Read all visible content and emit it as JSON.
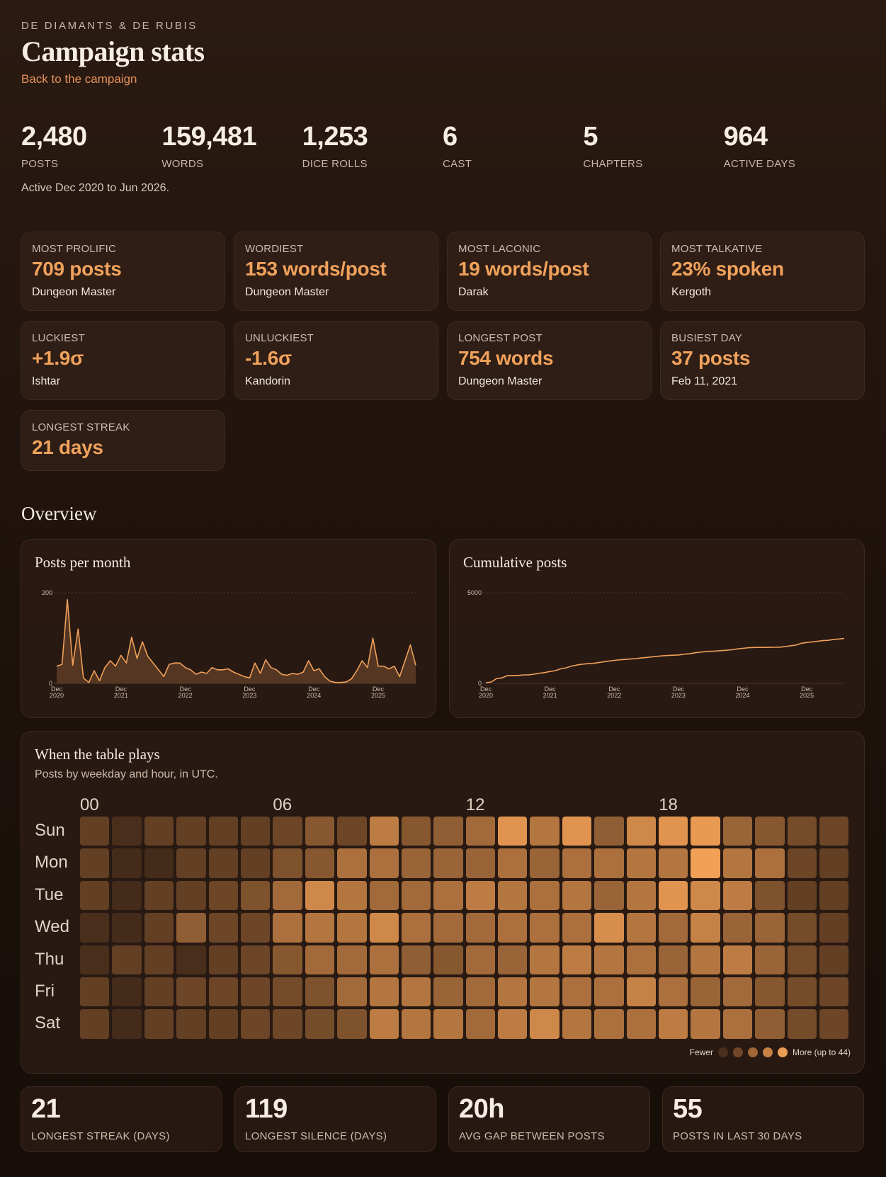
{
  "header": {
    "kicker": "DE DIAMANTS & DE RUBIS",
    "title": "Campaign stats",
    "back_link": "Back to the campaign"
  },
  "totals": [
    {
      "value": "2,480",
      "label": "POSTS"
    },
    {
      "value": "159,481",
      "label": "WORDS"
    },
    {
      "value": "1,253",
      "label": "DICE ROLLS"
    },
    {
      "value": "6",
      "label": "CAST"
    },
    {
      "value": "5",
      "label": "CHAPTERS"
    },
    {
      "value": "964",
      "label": "ACTIVE DAYS"
    }
  ],
  "active_range": "Active Dec 2020 to Jun 2026.",
  "cards": [
    {
      "label": "MOST PROLIFIC",
      "value": "709 posts",
      "who": "Dungeon Master"
    },
    {
      "label": "WORDIEST",
      "value": "153 words/post",
      "who": "Dungeon Master"
    },
    {
      "label": "MOST LACONIC",
      "value": "19 words/post",
      "who": "Darak"
    },
    {
      "label": "MOST TALKATIVE",
      "value": "23% spoken",
      "who": "Kergoth"
    },
    {
      "label": "LUCKIEST",
      "value": "+1.9σ",
      "who": "Ishtar"
    },
    {
      "label": "UNLUCKIEST",
      "value": "-1.6σ",
      "who": "Kandorin"
    },
    {
      "label": "LONGEST POST",
      "value": "754 words",
      "who": "Dungeon Master"
    },
    {
      "label": "BUSIEST DAY",
      "value": "37 posts",
      "who": "Feb 11, 2021"
    },
    {
      "label": "LONGEST STREAK",
      "value": "21 days",
      "who": ""
    }
  ],
  "overview_title": "Overview",
  "chart_data": [
    {
      "type": "area",
      "title": "Posts per month",
      "ylim": [
        0,
        200
      ],
      "yticks": [
        "200",
        "0"
      ],
      "xticks": [
        [
          "Dec",
          "2020"
        ],
        [
          "Dec",
          "2021"
        ],
        [
          "Dec",
          "2022"
        ],
        [
          "Dec",
          "2023"
        ],
        [
          "Dec",
          "2024"
        ],
        [
          "Dec",
          "2025"
        ]
      ],
      "x_start": "Dec 2020",
      "values": [
        38,
        42,
        185,
        40,
        120,
        12,
        2,
        28,
        6,
        35,
        50,
        38,
        62,
        45,
        102,
        55,
        92,
        60,
        45,
        30,
        15,
        42,
        45,
        45,
        35,
        30,
        20,
        25,
        22,
        35,
        30,
        30,
        32,
        25,
        20,
        15,
        12,
        45,
        22,
        52,
        35,
        30,
        20,
        18,
        22,
        20,
        25,
        50,
        28,
        32,
        15,
        5,
        2,
        2,
        3,
        10,
        28,
        50,
        35,
        100,
        38,
        38,
        32,
        38,
        15,
        50,
        85,
        40
      ]
    },
    {
      "type": "line",
      "title": "Cumulative posts",
      "ylim": [
        0,
        5000
      ],
      "yticks": [
        "5000",
        "0"
      ],
      "xticks": [
        [
          "Dec",
          "2020"
        ],
        [
          "Dec",
          "2021"
        ],
        [
          "Dec",
          "2022"
        ],
        [
          "Dec",
          "2023"
        ],
        [
          "Dec",
          "2024"
        ],
        [
          "Dec",
          "2025"
        ]
      ],
      "x_start": "Dec 2020",
      "values": [
        40,
        80,
        265,
        305,
        425,
        437,
        439,
        467,
        473,
        508,
        558,
        596,
        658,
        703,
        805,
        860,
        952,
        1012,
        1057,
        1087,
        1102,
        1144,
        1189,
        1234,
        1269,
        1299,
        1319,
        1344,
        1366,
        1401,
        1431,
        1461,
        1493,
        1518,
        1538,
        1553,
        1565,
        1610,
        1632,
        1684,
        1719,
        1749,
        1769,
        1787,
        1809,
        1829,
        1854,
        1904,
        1932,
        1964,
        1979,
        1984,
        1986,
        1988,
        1991,
        2001,
        2029,
        2079,
        2114,
        2214,
        2252,
        2290,
        2322,
        2360,
        2375,
        2425,
        2450,
        2480
      ]
    }
  ],
  "heatmap": {
    "title": "When the table plays",
    "subtitle": "Posts by weekday and hour, in UTC.",
    "hour_labels": [
      "00",
      "06",
      "12",
      "18"
    ],
    "days": [
      "Sun",
      "Mon",
      "Tue",
      "Wed",
      "Thu",
      "Fri",
      "Sat"
    ],
    "max": 44,
    "values": [
      [
        12,
        6,
        12,
        12,
        12,
        12,
        14,
        20,
        14,
        32,
        20,
        22,
        26,
        40,
        30,
        40,
        22,
        36,
        40,
        42,
        24,
        20,
        16,
        14
      ],
      [
        12,
        5,
        5,
        12,
        12,
        12,
        18,
        20,
        28,
        28,
        24,
        24,
        24,
        28,
        24,
        28,
        28,
        30,
        30,
        44,
        30,
        28,
        14,
        12
      ],
      [
        12,
        5,
        12,
        12,
        14,
        18,
        26,
        36,
        30,
        26,
        26,
        28,
        32,
        30,
        28,
        30,
        24,
        30,
        40,
        36,
        32,
        18,
        12,
        12
      ],
      [
        6,
        5,
        12,
        22,
        14,
        14,
        28,
        30,
        30,
        36,
        28,
        26,
        26,
        28,
        28,
        28,
        38,
        30,
        26,
        34,
        24,
        24,
        16,
        12
      ],
      [
        6,
        12,
        12,
        6,
        12,
        14,
        20,
        26,
        26,
        28,
        22,
        20,
        26,
        24,
        30,
        32,
        30,
        28,
        24,
        30,
        32,
        24,
        16,
        12
      ],
      [
        12,
        5,
        12,
        14,
        14,
        14,
        16,
        18,
        26,
        30,
        30,
        24,
        26,
        30,
        30,
        28,
        28,
        34,
        28,
        24,
        26,
        20,
        16,
        14
      ],
      [
        12,
        5,
        12,
        12,
        12,
        14,
        14,
        16,
        18,
        32,
        30,
        30,
        26,
        32,
        36,
        30,
        28,
        28,
        32,
        30,
        28,
        22,
        16,
        14
      ]
    ],
    "legend_fewer": "Fewer",
    "legend_more": "More (up to 44)",
    "legend_colors": [
      "#4a2f1f",
      "#734628",
      "#a16635",
      "#c98145",
      "#eb9e54"
    ]
  },
  "bottom_stats": [
    {
      "value": "21",
      "label": "LONGEST STREAK (DAYS)"
    },
    {
      "value": "119",
      "label": "LONGEST SILENCE (DAYS)"
    },
    {
      "value": "20h",
      "label": "AVG GAP BETWEEN POSTS"
    },
    {
      "value": "55",
      "label": "POSTS IN LAST 30 DAYS"
    }
  ],
  "colors": {
    "accent": "#f0a25c",
    "line": "#f0a05a",
    "cell_low": "#2e1c12",
    "cell_high": "#f2a055"
  }
}
